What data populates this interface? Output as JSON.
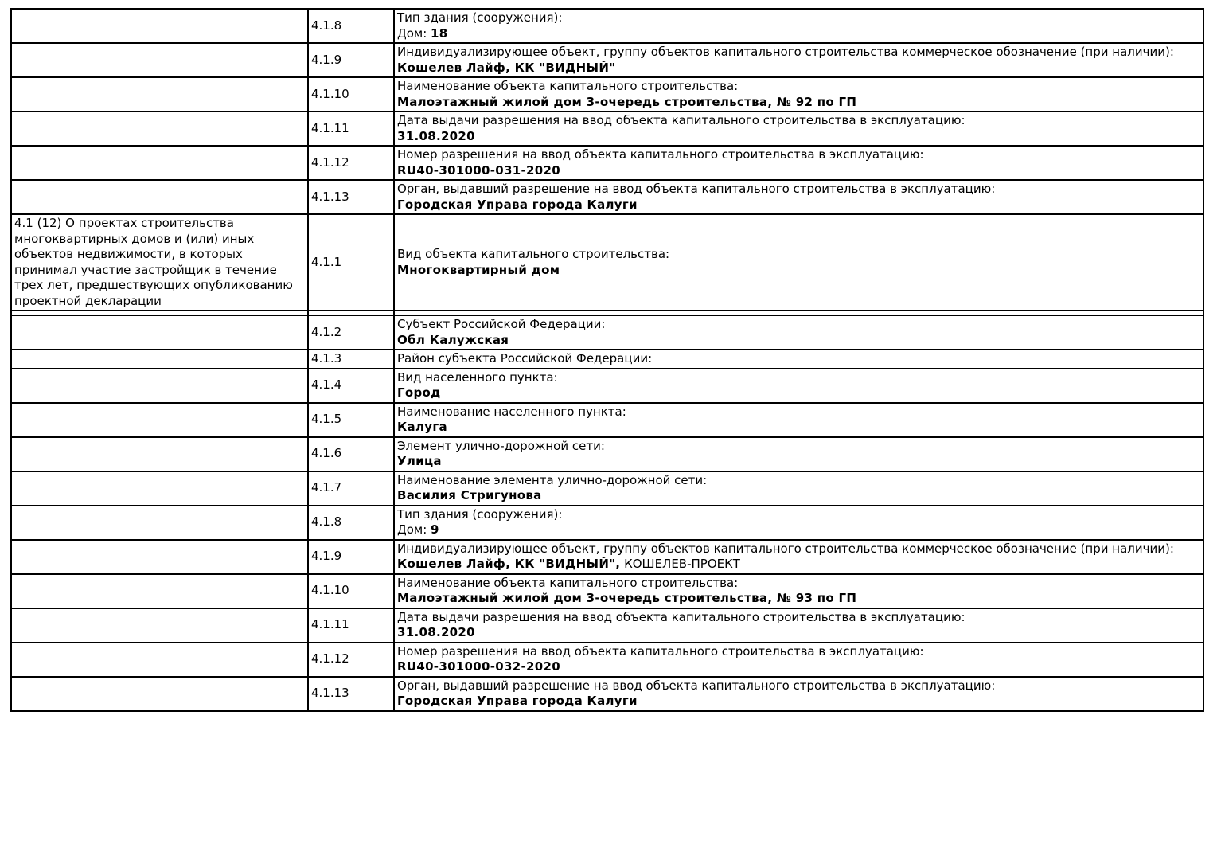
{
  "document": {
    "background_color": "#ffffff",
    "text_color": "#000000",
    "border_color": "#000000"
  },
  "table": {
    "blocks": [
      {
        "section": "",
        "rows": [
          {
            "num": "4.1.8",
            "label": "Тип здания (сооружения):",
            "value_plain": "Дом: ",
            "value_bold": "18",
            "value_tail": ""
          },
          {
            "num": "4.1.9",
            "label": "Индивидуализирующее объект, группу объектов капитального строительства коммерческое обозначение (при наличии):",
            "value_plain": "",
            "value_bold": "Кошелев Лайф, КК \"ВИДНЫЙ\"",
            "value_tail": ""
          },
          {
            "num": "4.1.10",
            "label": "Наименование объекта капитального строительства:",
            "value_plain": "",
            "value_bold": "Малоэтажный жилой дом 3-очередь строительства, № 92 по ГП",
            "value_tail": ""
          },
          {
            "num": "4.1.11",
            "label": "Дата выдачи разрешения на ввод объекта капитального строительства в эксплуатацию:",
            "value_plain": "",
            "value_bold": "31.08.2020",
            "value_tail": ""
          },
          {
            "num": "4.1.12",
            "label": "Номер разрешения на ввод объекта капитального строительства в эксплуатацию:",
            "value_plain": "",
            "value_bold": "RU40-301000-031-2020",
            "value_tail": ""
          },
          {
            "num": "4.1.13",
            "label": "Орган, выдавший разрешение на ввод объекта капитального строительства в эксплуатацию:",
            "value_plain": "",
            "value_bold": "Городская Управа города Калуги",
            "value_tail": ""
          }
        ]
      },
      {
        "section": "4.1 (12) О проектах строительства многоквартирных домов и (или) иных объектов недвижимости, в которых принимал участие застройщик в течение трех лет, предшествующих опубликованию проектной декларации",
        "rows": [
          {
            "num": "4.1.1",
            "label": "Вид объекта капитального строительства:",
            "value_plain": "",
            "value_bold": "Многоквартирный дом",
            "value_tail": ""
          },
          {
            "num": "4.1.2",
            "label": "Субъект Российской Федерации:",
            "value_plain": "",
            "value_bold": "Обл Калужская",
            "value_tail": ""
          },
          {
            "num": "4.1.3",
            "label": "Район субъекта Российской Федерации:",
            "value_plain": "",
            "value_bold": "",
            "value_tail": ""
          },
          {
            "num": "4.1.4",
            "label": "Вид населенного пункта:",
            "value_plain": "",
            "value_bold": "Город",
            "value_tail": ""
          },
          {
            "num": "4.1.5",
            "label": "Наименование населенного пункта:",
            "value_plain": "",
            "value_bold": "Калуга",
            "value_tail": ""
          },
          {
            "num": "4.1.6",
            "label": "Элемент улично-дорожной сети:",
            "value_plain": "",
            "value_bold": "Улица",
            "value_tail": ""
          },
          {
            "num": "4.1.7",
            "label": "Наименование элемента улично-дорожной сети:",
            "value_plain": "",
            "value_bold": "Василия Стригунова",
            "value_tail": ""
          },
          {
            "num": "4.1.8",
            "label": "Тип здания (сооружения):",
            "value_plain": "Дом: ",
            "value_bold": "9",
            "value_tail": ""
          },
          {
            "num": "4.1.9",
            "label": "Индивидуализирующее объект, группу объектов капитального строительства коммерческое обозначение (при наличии):",
            "value_plain": "",
            "value_bold": "Кошелев Лайф, КК \"ВИДНЫЙ\",",
            "value_tail": " КОШЕЛЕВ-ПРОЕКТ"
          },
          {
            "num": "4.1.10",
            "label": "Наименование объекта капитального строительства:",
            "value_plain": "",
            "value_bold": "Малоэтажный жилой дом 3-очередь строительства, № 93 по ГП",
            "value_tail": ""
          },
          {
            "num": "4.1.11",
            "label": "Дата выдачи разрешения на ввод объекта капитального строительства в эксплуатацию:",
            "value_plain": "",
            "value_bold": "31.08.2020",
            "value_tail": ""
          },
          {
            "num": "4.1.12",
            "label": "Номер разрешения на ввод объекта капитального строительства в эксплуатацию:",
            "value_plain": "",
            "value_bold": "RU40-301000-032-2020",
            "value_tail": ""
          },
          {
            "num": "4.1.13",
            "label": "Орган, выдавший разрешение на ввод объекта капитального строительства в эксплуатацию:",
            "value_plain": "",
            "value_bold": "Городская Управа города Калуги",
            "value_tail": ""
          }
        ]
      }
    ]
  }
}
